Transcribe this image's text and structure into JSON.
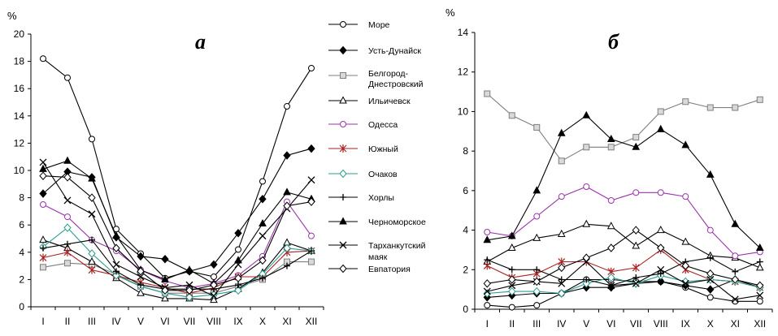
{
  "chart_data": [
    {
      "type": "line",
      "panel_label": "а",
      "ylabel": "%",
      "ylim": [
        0,
        20
      ],
      "yticks": [
        0,
        2,
        4,
        6,
        8,
        10,
        12,
        14,
        16,
        18,
        20
      ],
      "categories": [
        "I",
        "II",
        "III",
        "IV",
        "V",
        "VI",
        "VII",
        "VIII",
        "IX",
        "X",
        "XI",
        "XII"
      ],
      "legend_position": "right",
      "series": [
        {
          "name": "Море",
          "marker": "circle",
          "color": "#000000",
          "values": [
            18.2,
            16.8,
            12.3,
            5.7,
            3.9,
            2.1,
            2.6,
            2.2,
            4.2,
            9.2,
            14.7,
            17.5
          ]
        },
        {
          "name": "Усть-Дунайск",
          "marker": "diamond-filled",
          "color": "#000000",
          "values": [
            8.3,
            9.9,
            9.5,
            5.1,
            3.7,
            3.5,
            2.6,
            3.1,
            5.4,
            7.9,
            11.1,
            11.6
          ]
        },
        {
          "name": "Белгород-Днестровский",
          "marker": "square",
          "color": "#7f7f7f",
          "values": [
            2.9,
            3.2,
            3.1,
            2.4,
            1.5,
            1.0,
            1.0,
            1.0,
            1.5,
            2.0,
            3.3,
            3.3
          ]
        },
        {
          "name": "Ильичевск",
          "marker": "triangle",
          "color": "#000000",
          "values": [
            4.9,
            4.3,
            3.3,
            2.1,
            1.0,
            0.6,
            0.6,
            0.5,
            1.3,
            2.5,
            4.7,
            4.1
          ]
        },
        {
          "name": "Одесса",
          "marker": "circle",
          "color": "#9933aa",
          "values": [
            7.5,
            6.6,
            4.9,
            4.1,
            2.7,
            1.9,
            1.4,
            1.7,
            2.3,
            3.7,
            7.7,
            5.2
          ]
        },
        {
          "name": "Южный",
          "marker": "asterisk",
          "color": "#aa2222",
          "values": [
            3.6,
            4.0,
            2.7,
            2.3,
            1.8,
            1.4,
            1.0,
            1.4,
            2.2,
            2.2,
            4.0,
            4.1
          ]
        },
        {
          "name": "Очаков",
          "marker": "diamond",
          "color": "#2a9d8f",
          "values": [
            4.4,
            5.8,
            3.9,
            2.3,
            1.5,
            1.0,
            0.7,
            0.9,
            1.2,
            2.4,
            4.3,
            4.1
          ]
        },
        {
          "name": "Хорлы",
          "marker": "plus",
          "color": "#000000",
          "values": [
            4.3,
            4.6,
            4.9,
            2.6,
            1.6,
            1.3,
            1.3,
            1.3,
            1.6,
            2.1,
            3.0,
            4.1
          ]
        },
        {
          "name": "Черноморское",
          "marker": "triangle-filled",
          "color": "#000000",
          "values": [
            10.1,
            10.7,
            9.4,
            5.2,
            2.7,
            2.0,
            2.7,
            1.7,
            3.4,
            6.1,
            8.4,
            7.9
          ]
        },
        {
          "name": "Тарханкутский маяк",
          "marker": "cross",
          "color": "#000000",
          "values": [
            10.6,
            7.8,
            6.8,
            3.1,
            2.2,
            1.4,
            1.6,
            0.8,
            3.1,
            5.2,
            7.2,
            9.3
          ]
        },
        {
          "name": "Евпатория",
          "marker": "diamond",
          "color": "#000000",
          "values": [
            9.6,
            9.5,
            8.0,
            4.3,
            2.6,
            1.2,
            1.2,
            1.6,
            2.1,
            3.4,
            7.4,
            7.7
          ]
        }
      ]
    },
    {
      "type": "line",
      "panel_label": "б",
      "ylabel": "%",
      "ylim": [
        0,
        14
      ],
      "yticks": [
        0,
        2,
        4,
        6,
        8,
        10,
        12,
        14
      ],
      "categories": [
        "I",
        "II",
        "III",
        "IV",
        "V",
        "VI",
        "VII",
        "VIII",
        "IX",
        "X",
        "XI",
        "XII"
      ],
      "series": [
        {
          "marker": "circle",
          "color": "#000000",
          "values": [
            0.2,
            0.1,
            0.2,
            0.8,
            1.5,
            1.5,
            1.4,
            1.4,
            1.1,
            0.6,
            0.4,
            0.4
          ]
        },
        {
          "marker": "diamond-filled",
          "color": "#000000",
          "values": [
            0.6,
            0.7,
            0.8,
            0.8,
            1.1,
            1.1,
            1.3,
            1.4,
            1.2,
            1.0,
            1.5,
            1.1
          ]
        },
        {
          "marker": "square",
          "color": "#7f7f7f",
          "values": [
            10.9,
            9.8,
            9.2,
            7.5,
            8.2,
            8.2,
            8.7,
            10.0,
            10.5,
            10.2,
            10.2,
            10.6
          ]
        },
        {
          "marker": "triangle",
          "color": "#000000",
          "values": [
            2.4,
            3.1,
            3.6,
            3.8,
            4.3,
            4.2,
            3.2,
            4.0,
            3.4,
            2.7,
            2.6,
            2.1
          ]
        },
        {
          "marker": "circle",
          "color": "#9933aa",
          "values": [
            3.9,
            3.7,
            4.7,
            5.7,
            6.2,
            5.5,
            5.9,
            5.9,
            5.7,
            4.0,
            2.7,
            2.9
          ]
        },
        {
          "marker": "asterisk",
          "color": "#aa2222",
          "values": [
            2.2,
            1.6,
            1.8,
            2.4,
            2.4,
            1.9,
            2.1,
            3.0,
            2.0,
            1.5,
            1.4,
            1.1
          ]
        },
        {
          "marker": "diamond",
          "color": "#2a9d8f",
          "values": [
            0.8,
            0.9,
            0.9,
            0.8,
            1.3,
            1.6,
            1.3,
            1.7,
            1.4,
            1.5,
            1.4,
            1.1
          ]
        },
        {
          "marker": "plus",
          "color": "#000000",
          "values": [
            2.5,
            2.0,
            2.0,
            1.5,
            1.5,
            1.2,
            1.6,
            1.8,
            2.4,
            2.6,
            1.9,
            2.4
          ]
        },
        {
          "marker": "triangle-filled",
          "color": "#000000",
          "values": [
            3.5,
            3.7,
            6.0,
            8.9,
            9.8,
            8.6,
            8.2,
            9.1,
            8.3,
            6.8,
            4.3,
            3.1
          ]
        },
        {
          "marker": "cross",
          "color": "#000000",
          "values": [
            0.9,
            1.2,
            1.4,
            1.3,
            2.4,
            1.2,
            1.3,
            2.0,
            1.3,
            1.5,
            0.5,
            0.7
          ]
        },
        {
          "marker": "diamond",
          "color": "#000000",
          "values": [
            1.3,
            1.5,
            1.4,
            2.1,
            2.6,
            3.1,
            4.0,
            3.1,
            2.2,
            1.8,
            1.5,
            1.2
          ]
        }
      ]
    }
  ]
}
